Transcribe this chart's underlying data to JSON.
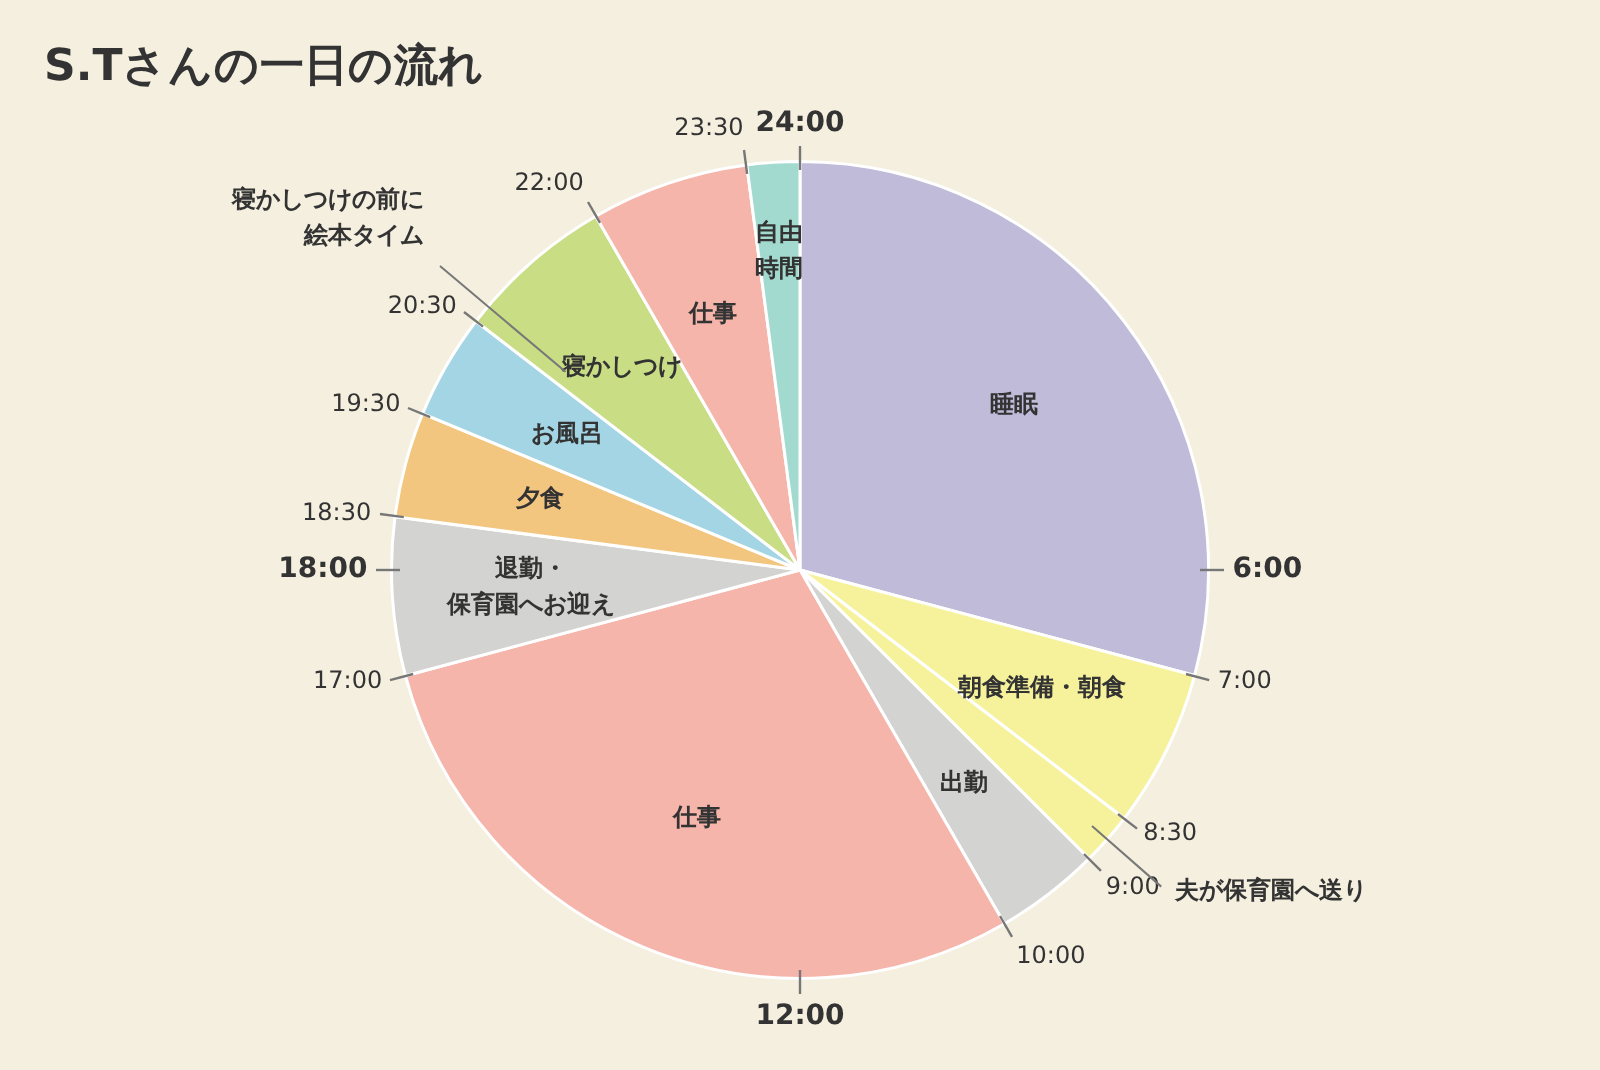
{
  "chart_data": {
    "type": "pie",
    "title": "S.Tさんの一日の流れ",
    "categories": [
      "睡眠",
      "朝食準備・朝食",
      "夫が保育園へ送り",
      "出勤",
      "仕事",
      "退勤・保育園へお迎え",
      "夕食",
      "お風呂",
      "寝かしつけ",
      "仕事",
      "自由時間"
    ],
    "values": [
      29.16,
      6.25,
      2.08,
      4.17,
      29.17,
      6.25,
      4.17,
      4.17,
      6.25,
      6.25,
      2.08
    ],
    "colors": [
      "#bfbbd9",
      "#f6f29c",
      "#f6f29c",
      "#d3d3d1",
      "#f5b5ab",
      "#d3d3d1",
      "#f3c680",
      "#a4d5e4",
      "#c9dd85",
      "#f5b5ab",
      "#a3dad0"
    ],
    "annotations": [
      "24:00",
      "6:00",
      "7:00",
      "8:30",
      "9:00",
      "10:00",
      "12:00",
      "17:00",
      "18:00",
      "18:30",
      "19:30",
      "20:30",
      "22:00",
      "23:30",
      "寝かしつけの前に絵本タイム"
    ],
    "legend": false
  }
}
